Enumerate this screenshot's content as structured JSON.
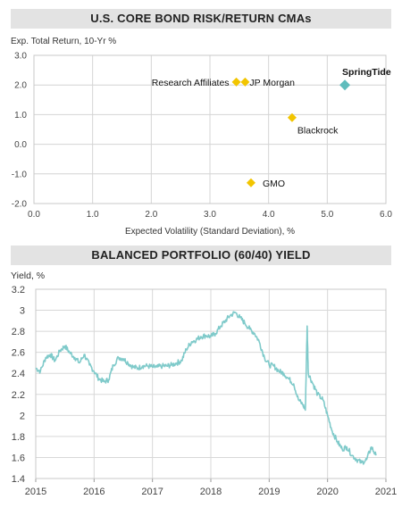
{
  "chart_data": [
    {
      "type": "scatter",
      "title": "U.S. CORE BOND RISK/RETURN CMAs",
      "ylabel": "Exp. Total Return, 10-Yr %",
      "xlabel": "Expected Volatility (Standard Deviation), %",
      "xlim": [
        0.0,
        6.0
      ],
      "ylim": [
        -2.0,
        3.0
      ],
      "xticks": [
        "0.0",
        "1.0",
        "2.0",
        "3.0",
        "4.0",
        "5.0",
        "6.0"
      ],
      "yticks": [
        "3.0",
        "2.0",
        "1.0",
        "0.0",
        "-1.0",
        "-2.0"
      ],
      "grid": true,
      "points": [
        {
          "label": "Research Affiliates",
          "x": 3.45,
          "y": 2.1,
          "color": "#f2c500"
        },
        {
          "label": "JP Morgan",
          "x": 3.6,
          "y": 2.1,
          "color": "#f2c500"
        },
        {
          "label": "Blackrock",
          "x": 4.4,
          "y": 0.9,
          "color": "#f2c500"
        },
        {
          "label": "GMO",
          "x": 3.7,
          "y": -1.3,
          "color": "#f2c500"
        },
        {
          "label": "SpringTide",
          "x": 5.3,
          "y": 2.0,
          "color": "#5fbcbc"
        }
      ]
    },
    {
      "type": "line",
      "title": "BALANCED PORTFOLIO (60/40) YIELD",
      "ylabel": "Yield, %",
      "xlim": [
        2015,
        2021
      ],
      "ylim": [
        1.4,
        3.2
      ],
      "xticks": [
        "2015",
        "2016",
        "2017",
        "2018",
        "2019",
        "2020",
        "2021"
      ],
      "yticks": [
        "3.2",
        "3",
        "2.8",
        "2.6",
        "2.4",
        "2.2",
        "2",
        "1.8",
        "1.6",
        "1.4"
      ],
      "grid": true,
      "series": [
        {
          "color": "#7fcaca",
          "x": [
            2015.0,
            2015.08,
            2015.17,
            2015.25,
            2015.33,
            2015.42,
            2015.5,
            2015.58,
            2015.67,
            2015.75,
            2015.83,
            2015.92,
            2016.0,
            2016.08,
            2016.17,
            2016.25,
            2016.33,
            2016.42,
            2016.5,
            2016.58,
            2016.67,
            2016.75,
            2016.83,
            2016.92,
            2017.0,
            2017.08,
            2017.17,
            2017.25,
            2017.33,
            2017.42,
            2017.5,
            2017.58,
            2017.67,
            2017.75,
            2017.83,
            2017.92,
            2018.0,
            2018.08,
            2018.17,
            2018.25,
            2018.33,
            2018.42,
            2018.5,
            2018.58,
            2018.67,
            2018.75,
            2018.83,
            2018.92,
            2019.0,
            2019.08,
            2019.17,
            2019.25,
            2019.33,
            2019.42,
            2019.5,
            2019.58,
            2019.62,
            2019.65,
            2019.67,
            2019.75,
            2019.83,
            2019.92,
            2020.0,
            2020.08,
            2020.17,
            2020.25,
            2020.33,
            2020.42,
            2020.5,
            2020.58,
            2020.67,
            2020.75,
            2020.83
          ],
          "y": [
            2.45,
            2.42,
            2.55,
            2.58,
            2.52,
            2.62,
            2.66,
            2.6,
            2.55,
            2.5,
            2.58,
            2.48,
            2.42,
            2.35,
            2.32,
            2.34,
            2.48,
            2.55,
            2.54,
            2.5,
            2.46,
            2.45,
            2.47,
            2.47,
            2.46,
            2.46,
            2.47,
            2.47,
            2.48,
            2.5,
            2.52,
            2.63,
            2.7,
            2.72,
            2.75,
            2.76,
            2.75,
            2.78,
            2.85,
            2.9,
            2.95,
            2.98,
            2.93,
            2.88,
            2.82,
            2.78,
            2.7,
            2.55,
            2.48,
            2.47,
            2.42,
            2.4,
            2.35,
            2.3,
            2.15,
            2.1,
            2.05,
            2.85,
            2.4,
            2.3,
            2.2,
            2.15,
            2.0,
            1.85,
            1.75,
            1.68,
            1.7,
            1.62,
            1.58,
            1.55,
            1.58,
            1.7,
            1.62
          ]
        }
      ]
    }
  ]
}
